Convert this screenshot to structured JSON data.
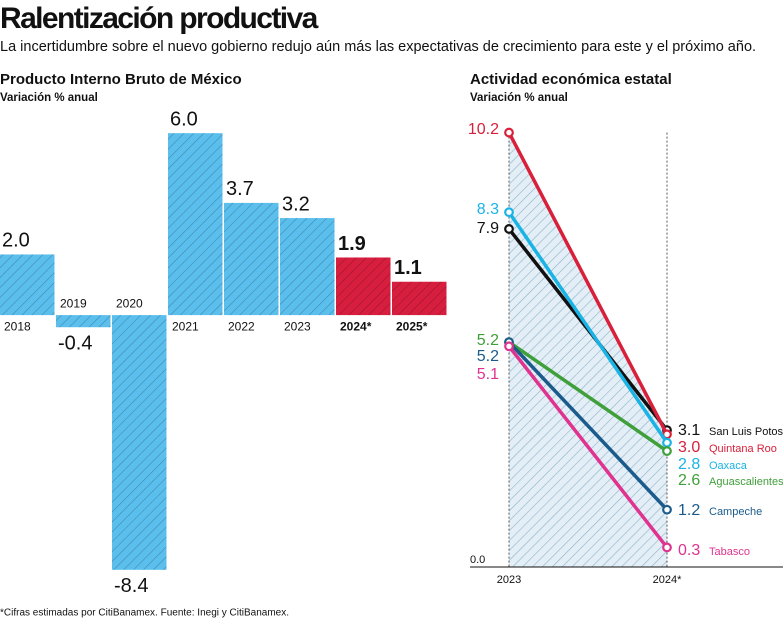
{
  "header": {
    "title": "Ralentización productiva",
    "subtitle": "La incertidumbre sobre el nuevo gobierno redujo aún más las expectativas de crecimiento para este y el próximo año."
  },
  "chart_data": [
    {
      "type": "bar",
      "title": "Producto Interno Bruto de México",
      "subtitle": "Variación % anual",
      "categories": [
        "2018",
        "2019",
        "2020",
        "2021",
        "2022",
        "2023",
        "2024*",
        "2025*"
      ],
      "values": [
        2.0,
        -0.4,
        -8.4,
        6.0,
        3.7,
        3.2,
        1.9,
        1.1
      ],
      "value_labels": [
        "2.0",
        "-0.4",
        "-8.4",
        "6.0",
        "3.7",
        "3.2",
        "1.9",
        "1.1"
      ],
      "colors": [
        "#5bbfee",
        "#5bbfee",
        "#5bbfee",
        "#5bbfee",
        "#5bbfee",
        "#5bbfee",
        "#d81e3f",
        "#d81e3f"
      ],
      "ylim": [
        -9,
        6.5
      ]
    },
    {
      "type": "line",
      "title": "Actividad económica estatal",
      "subtitle": "Variación % anual",
      "categories": [
        "2023",
        "2024*"
      ],
      "series": [
        {
          "name": "San Luis Potosí",
          "color": "#111111",
          "values": [
            7.9,
            3.1
          ],
          "value_labels": [
            "7.9",
            "3.1"
          ]
        },
        {
          "name": "Quintana Roo",
          "color": "#d8203a",
          "values": [
            10.2,
            3.0
          ],
          "value_labels": [
            "10.2",
            "3.0"
          ]
        },
        {
          "name": "Oaxaca",
          "color": "#1ab3e6",
          "values": [
            8.3,
            2.8
          ],
          "value_labels": [
            "8.3",
            "2.8"
          ]
        },
        {
          "name": "Aguascalientes",
          "color": "#3f9f3a",
          "values": [
            5.2,
            2.6
          ],
          "value_labels": [
            "5.2",
            "2.6"
          ]
        },
        {
          "name": "Campeche",
          "color": "#1a5b8c",
          "values": [
            5.2,
            1.2
          ],
          "value_labels": [
            "5.2",
            "1.2"
          ]
        },
        {
          "name": "Tabasco",
          "color": "#e0338f",
          "values": [
            5.1,
            0.3
          ],
          "value_labels": [
            "5.1",
            "0.3"
          ]
        }
      ],
      "ylim": [
        0,
        10.5
      ],
      "yticks": [
        {
          "value": 0,
          "label": "0.0"
        }
      ]
    }
  ],
  "footnote": "*Cifras estimadas por CitiBanamex. Fuente: Inegi y CitiBanamex."
}
